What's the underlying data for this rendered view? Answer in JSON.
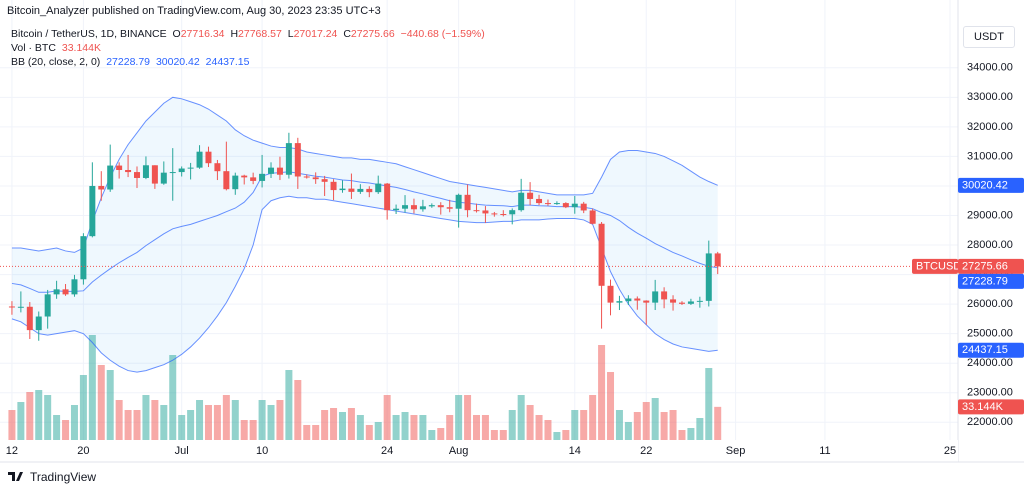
{
  "header": {
    "publisher": "Bitcoin_Analyzer published on TradingView.com, Aug 30, 2023 23:35 UTC+3"
  },
  "chart_data": {
    "type": "candlestick",
    "symbol": "Bitcoin / TetherUS, 1D, BINANCE",
    "ticker": "BTCUSDT",
    "currency": "USDT",
    "legend": {
      "open_label": "O",
      "high_label": "H",
      "low_label": "L",
      "close_label": "C",
      "change": "−440.68 (−1.59%)"
    },
    "x": [
      "2023-06-12",
      "2023-06-13",
      "2023-06-14",
      "2023-06-15",
      "2023-06-16",
      "2023-06-17",
      "2023-06-18",
      "2023-06-19",
      "2023-06-20",
      "2023-06-21",
      "2023-06-22",
      "2023-06-23",
      "2023-06-24",
      "2023-06-25",
      "2023-06-26",
      "2023-06-27",
      "2023-06-28",
      "2023-06-29",
      "2023-06-30",
      "2023-07-01",
      "2023-07-02",
      "2023-07-03",
      "2023-07-04",
      "2023-07-05",
      "2023-07-06",
      "2023-07-07",
      "2023-07-08",
      "2023-07-09",
      "2023-07-10",
      "2023-07-11",
      "2023-07-12",
      "2023-07-13",
      "2023-07-14",
      "2023-07-15",
      "2023-07-16",
      "2023-07-17",
      "2023-07-18",
      "2023-07-19",
      "2023-07-20",
      "2023-07-21",
      "2023-07-22",
      "2023-07-23",
      "2023-07-24",
      "2023-07-25",
      "2023-07-26",
      "2023-07-27",
      "2023-07-28",
      "2023-07-29",
      "2023-07-30",
      "2023-07-31",
      "2023-08-01",
      "2023-08-02",
      "2023-08-03",
      "2023-08-04",
      "2023-08-05",
      "2023-08-06",
      "2023-08-07",
      "2023-08-08",
      "2023-08-09",
      "2023-08-10",
      "2023-08-11",
      "2023-08-12",
      "2023-08-13",
      "2023-08-14",
      "2023-08-15",
      "2023-08-16",
      "2023-08-17",
      "2023-08-18",
      "2023-08-19",
      "2023-08-20",
      "2023-08-21",
      "2023-08-22",
      "2023-08-23",
      "2023-08-24",
      "2023-08-25",
      "2023-08-26",
      "2023-08-27",
      "2023-08-28",
      "2023-08-29",
      "2023-08-30"
    ],
    "open": [
      25920,
      25900,
      25910,
      25120,
      25580,
      26330,
      26500,
      26330,
      26840,
      28300,
      30000,
      29880,
      30690,
      30540,
      30470,
      30270,
      30700,
      30080,
      30450,
      30470,
      30590,
      30620,
      31160,
      30770,
      30500,
      29890,
      30350,
      30290,
      30170,
      30410,
      30620,
      30380,
      31450,
      30320,
      30290,
      30230,
      30140,
      29860,
      29910,
      29800,
      29900,
      29790,
      30080,
      29180,
      29230,
      29350,
      29210,
      29310,
      29350,
      29280,
      29230,
      29700,
      29180,
      29170,
      29070,
      29050,
      29040,
      29180,
      29770,
      29560,
      29420,
      29400,
      29420,
      29280,
      29400,
      29170,
      28720,
      26620,
      26050,
      26100,
      26190,
      26120,
      26050,
      26430,
      26160,
      26050,
      26010,
      26090,
      26110,
      27716.34
    ],
    "high": [
      26100,
      26430,
      26070,
      25750,
      26480,
      26790,
      26680,
      26990,
      28400,
      30800,
      30500,
      31400,
      30800,
      31050,
      30660,
      31000,
      30700,
      30830,
      31280,
      30660,
      30780,
      31380,
      31330,
      30880,
      31500,
      30450,
      30380,
      30450,
      31050,
      30800,
      30990,
      31800,
      31630,
      30390,
      30460,
      30340,
      30230,
      30190,
      30420,
      30060,
      29990,
      30350,
      30100,
      29370,
      29690,
      29570,
      29530,
      29410,
      29450,
      29530,
      29740,
      30050,
      29400,
      29320,
      29120,
      29180,
      29240,
      30240,
      30130,
      29700,
      29540,
      29480,
      29450,
      29660,
      29460,
      29230,
      28780,
      26830,
      26280,
      26300,
      26260,
      26130,
      26820,
      26570,
      26300,
      26100,
      26180,
      26250,
      28150,
      27768.57
    ],
    "low": [
      25640,
      25720,
      24820,
      24760,
      25170,
      26180,
      26280,
      26250,
      26660,
      28260,
      29500,
      29800,
      30250,
      30300,
      29930,
      30230,
      29900,
      30040,
      29500,
      30320,
      30220,
      30580,
      30640,
      30200,
      29850,
      29700,
      30050,
      30060,
      29950,
      30270,
      30200,
      30250,
      29900,
      30250,
      30070,
      29660,
      29520,
      29770,
      29560,
      29730,
      29620,
      29730,
      28860,
      29050,
      29100,
      29070,
      29130,
      29260,
      29030,
      29110,
      28590,
      28940,
      29100,
      28750,
      28960,
      28970,
      28700,
      29130,
      29350,
      29350,
      29330,
      29360,
      29250,
      29060,
      29080,
      28700,
      25170,
      25620,
      25800,
      25970,
      25810,
      25300,
      25800,
      25860,
      25780,
      25970,
      25970,
      25880,
      25920,
      27017.24
    ],
    "close": [
      25900,
      25910,
      25120,
      25580,
      26330,
      26500,
      26330,
      26840,
      28300,
      30000,
      29880,
      30690,
      30540,
      30470,
      30270,
      30700,
      30080,
      30450,
      30470,
      30590,
      30620,
      31160,
      30770,
      30500,
      29890,
      30350,
      30290,
      30170,
      30410,
      30620,
      30380,
      31450,
      30320,
      30290,
      30230,
      30140,
      29860,
      29910,
      29800,
      29900,
      29790,
      30080,
      29180,
      29230,
      29350,
      29210,
      29310,
      29350,
      29280,
      29230,
      29700,
      29180,
      29170,
      29070,
      29050,
      29040,
      29180,
      29770,
      29560,
      29420,
      29400,
      29420,
      29280,
      29400,
      29170,
      28720,
      26620,
      26050,
      26100,
      26190,
      26120,
      26050,
      26430,
      26160,
      26050,
      26010,
      26090,
      26110,
      27716.34,
      27275.66
    ],
    "up_color": "#26a69a",
    "down_color": "#ef5350",
    "volume": {
      "name": "Vol · BTC",
      "values": [
        30000,
        38000,
        48000,
        50000,
        45000,
        25000,
        20000,
        35000,
        65000,
        105000,
        75000,
        70000,
        40000,
        30000,
        30000,
        45000,
        40000,
        35000,
        85000,
        25000,
        30000,
        40000,
        35000,
        35000,
        45000,
        40000,
        20000,
        20000,
        40000,
        35000,
        40000,
        70000,
        60000,
        15000,
        15000,
        30000,
        32000,
        28000,
        32000,
        25000,
        15000,
        18000,
        45000,
        25000,
        28000,
        25000,
        25000,
        10000,
        12000,
        25000,
        45000,
        45000,
        25000,
        25000,
        10000,
        10000,
        30000,
        45000,
        35000,
        25000,
        20000,
        8000,
        10000,
        30000,
        30000,
        45000,
        95000,
        68000,
        30000,
        18000,
        28000,
        38000,
        42000,
        28000,
        30000,
        10000,
        12000,
        22000,
        72000,
        33144
      ],
      "value_labels": [
        null,
        null,
        null,
        null,
        null,
        null,
        null,
        null,
        null,
        null,
        null,
        null,
        null,
        null,
        null,
        null,
        null,
        null,
        null,
        null,
        null,
        null,
        null,
        null,
        null,
        null,
        null,
        null,
        null,
        null,
        null,
        null,
        null,
        null,
        null,
        null,
        null,
        null,
        null,
        null,
        null,
        null,
        null,
        null,
        null,
        null,
        null,
        null,
        null,
        null,
        null,
        null,
        null,
        null,
        null,
        null,
        null,
        null,
        null,
        null,
        null,
        null,
        null,
        null,
        null,
        null,
        null,
        null,
        null,
        null,
        null,
        null,
        null,
        null,
        null,
        null,
        null,
        null,
        null,
        "33.144K"
      ]
    },
    "bollinger": {
      "name": "BB (20, close, 2, 0)",
      "color": "#2962ff",
      "basis": [
        26700,
        26650,
        26530,
        26400,
        26400,
        26450,
        26430,
        26430,
        26450,
        26750,
        26980,
        27200,
        27400,
        27580,
        27750,
        27980,
        28180,
        28380,
        28550,
        28630,
        28700,
        28800,
        28900,
        29000,
        29130,
        29250,
        29450,
        29780,
        30330,
        30430,
        30450,
        30480,
        30430,
        30380,
        30330,
        30300,
        30250,
        30200,
        30180,
        30130,
        30100,
        30050,
        30000,
        29950,
        29880,
        29800,
        29730,
        29650,
        29580,
        29500,
        29450,
        29420,
        29380,
        29350,
        29340,
        29330,
        29300,
        29350,
        29350,
        29330,
        29320,
        29300,
        29300,
        29300,
        29280,
        29230,
        29100,
        29000,
        28830,
        28600,
        28400,
        28230,
        28050,
        27900,
        27750,
        27630,
        27500,
        27380,
        27280,
        27228.79
      ],
      "upper": [
        27900,
        27900,
        27850,
        27800,
        27850,
        27900,
        27800,
        27750,
        27900,
        28800,
        29600,
        30300,
        30900,
        31400,
        31800,
        32200,
        32500,
        32800,
        33000,
        32950,
        32850,
        32750,
        32600,
        32400,
        32200,
        31900,
        31700,
        31550,
        31450,
        31350,
        31300,
        31300,
        31250,
        31150,
        31100,
        31050,
        31000,
        30950,
        30950,
        30900,
        30900,
        30850,
        30800,
        30750,
        30650,
        30550,
        30450,
        30350,
        30250,
        30150,
        30100,
        30050,
        30000,
        29950,
        29900,
        29850,
        29800,
        29850,
        29850,
        29800,
        29750,
        29700,
        29700,
        29700,
        29700,
        29750,
        30300,
        30900,
        31150,
        31200,
        31200,
        31150,
        31100,
        31000,
        30850,
        30700,
        30500,
        30300,
        30150,
        30020.42
      ],
      "lower": [
        25500,
        25400,
        25200,
        25000,
        24950,
        25000,
        25050,
        25100,
        25000,
        24700,
        24350,
        24100,
        23900,
        23750,
        23700,
        23750,
        23850,
        23950,
        24100,
        24300,
        24550,
        24850,
        25200,
        25600,
        26050,
        26600,
        27200,
        28000,
        29200,
        29500,
        29600,
        29650,
        29600,
        29600,
        29550,
        29550,
        29500,
        29450,
        29400,
        29350,
        29300,
        29250,
        29200,
        29150,
        29100,
        29050,
        29000,
        28950,
        28900,
        28850,
        28800,
        28780,
        28760,
        28760,
        28780,
        28800,
        28800,
        28850,
        28850,
        28850,
        28880,
        28900,
        28900,
        28900,
        28850,
        28700,
        27900,
        27100,
        26500,
        26000,
        25600,
        25300,
        25000,
        24800,
        24650,
        24550,
        24500,
        24450,
        24400,
        24437.15
      ]
    },
    "xlim": [
      "2023-06-11",
      "2023-09-25"
    ],
    "xticks": [
      {
        "value": "2023-06-12",
        "label": "12"
      },
      {
        "value": "2023-06-20",
        "label": "20"
      },
      {
        "value": "2023-07-01",
        "label": "Jul"
      },
      {
        "value": "2023-07-10",
        "label": "10"
      },
      {
        "value": "2023-07-24",
        "label": "24"
      },
      {
        "value": "2023-08-01",
        "label": "Aug"
      },
      {
        "value": "2023-08-14",
        "label": "14"
      },
      {
        "value": "2023-08-22",
        "label": "22"
      },
      {
        "value": "2023-09-01",
        "label": "Sep"
      },
      {
        "value": "2023-09-11",
        "label": "11"
      },
      {
        "value": "2023-09-25",
        "label": "25"
      }
    ],
    "ylim": [
      21400,
      35550
    ],
    "yticks": [
      {
        "value": 22000,
        "label": "22000.00"
      },
      {
        "value": 23000,
        "label": "23000.00"
      },
      {
        "value": 24000,
        "label": "24000.00"
      },
      {
        "value": 25000,
        "label": "25000.00"
      },
      {
        "value": 26000,
        "label": "26000.00"
      },
      {
        "value": 27000,
        "label": "27000.00"
      },
      {
        "value": 28000,
        "label": "28000.00"
      },
      {
        "value": 29000,
        "label": "29000.00"
      },
      {
        "value": 30000,
        "label": "30000.00"
      },
      {
        "value": 31000,
        "label": "31000.00"
      },
      {
        "value": 32000,
        "label": "32000.00"
      },
      {
        "value": 33000,
        "label": "33000.00"
      },
      {
        "value": 34000,
        "label": "34000.00"
      }
    ],
    "grid": true
  },
  "footer": {
    "brand": "TradingView"
  }
}
